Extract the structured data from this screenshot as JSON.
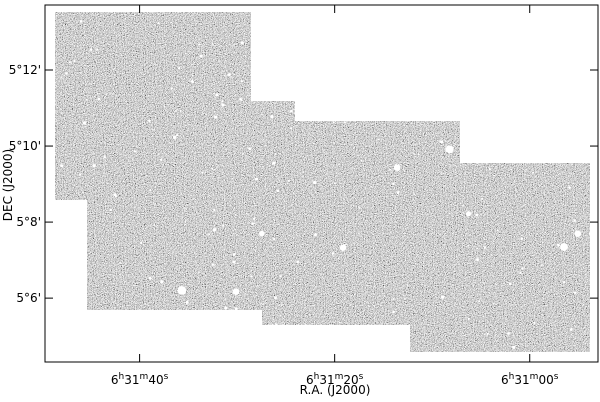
{
  "chart_data": {
    "type": "image",
    "xlabel": "R.A. (J2000)",
    "ylabel": "DEC (J2000)",
    "xlim": [
      49.7,
      -7
    ],
    "ylim": [
      304.32,
      313.71
    ],
    "xticks": [
      {
        "value": 40,
        "label": "6h31m40s"
      },
      {
        "value": 20,
        "label": "6h31m20s"
      },
      {
        "value": 0,
        "label": "6h31m00s"
      }
    ],
    "yticks": [
      {
        "value": 306,
        "label": "5°6'"
      },
      {
        "value": 308,
        "label": "5°8'"
      },
      {
        "value": 310,
        "label": "5°10'"
      },
      {
        "value": 312,
        "label": "5°12'"
      }
    ]
  }
}
